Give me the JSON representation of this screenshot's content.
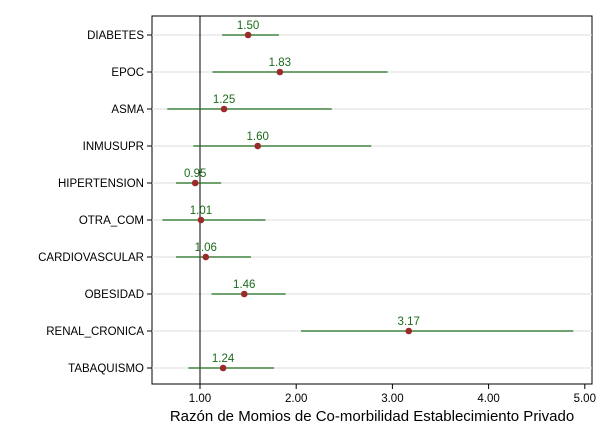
{
  "chart_data": {
    "type": "forest",
    "xlabel": "Razón de Momios de Co-morbilidad Establecimiento Privado",
    "xlim": [
      0.5,
      5.0
    ],
    "xticks": [
      1.0,
      2.0,
      3.0,
      4.0,
      5.0
    ],
    "xtick_labels": [
      "1.00",
      "2.00",
      "3.00",
      "4.00",
      "5.00"
    ],
    "reference_line": 1.0,
    "grid": "horizontal",
    "point_color": "#9b2a2a",
    "ci_color": "#1a6b1a",
    "label_color": "#1a6b1a",
    "categories": [
      "DIABETES",
      "EPOC",
      "ASMA",
      "INMUSUPR",
      "HIPERTENSION",
      "OTRA_COM",
      "CARDIOVASCULAR",
      "OBESIDAD",
      "RENAL_CRONICA",
      "TABAQUISMO"
    ],
    "estimates": [
      1.5,
      1.83,
      1.25,
      1.6,
      0.95,
      1.01,
      1.06,
      1.46,
      3.17,
      1.24
    ],
    "estimate_labels": [
      "1.50",
      "1.83",
      "1.25",
      "1.60",
      "0.95",
      "1.01",
      "1.06",
      "1.46",
      "3.17",
      "1.24"
    ],
    "ci_lower": [
      1.23,
      1.13,
      0.66,
      0.93,
      0.75,
      0.61,
      0.75,
      1.12,
      2.05,
      0.88
    ],
    "ci_upper": [
      1.82,
      2.95,
      2.37,
      2.78,
      1.22,
      1.68,
      1.53,
      1.89,
      4.88,
      1.77
    ]
  }
}
